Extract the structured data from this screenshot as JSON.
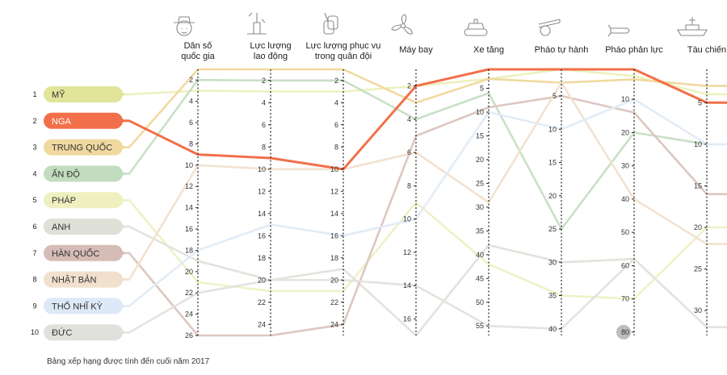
{
  "chart_data": {
    "type": "parallel-coordinates",
    "title": "",
    "footnote": "Bảng xếp hạng được tính đến cuối năm 2017",
    "axes": [
      {
        "key": "dan_so",
        "label_lines": [
          "Dân số",
          "quốc gia"
        ],
        "icon": "person-icon",
        "min": 1,
        "max": 26,
        "ticks": [
          2,
          4,
          6,
          8,
          10,
          12,
          14,
          16,
          18,
          20,
          22,
          24,
          26
        ]
      },
      {
        "key": "luc_luong_lao_dong",
        "label_lines": [
          "Lực lượng",
          "lao động"
        ],
        "icon": "worker-icon",
        "min": 1,
        "max": 25,
        "ticks": [
          2,
          4,
          6,
          8,
          10,
          12,
          14,
          16,
          18,
          20,
          22,
          24
        ]
      },
      {
        "key": "luc_luong_phuc_vu",
        "label_lines": [
          "Lực lượng phục vụ",
          "trong quân đội"
        ],
        "icon": "dog-tags-icon",
        "min": 1,
        "max": 25,
        "ticks": [
          2,
          4,
          6,
          8,
          10,
          12,
          14,
          16,
          18,
          20,
          22,
          24
        ]
      },
      {
        "key": "may_bay",
        "label_lines": [
          "Máy bay"
        ],
        "icon": "propeller-icon",
        "min": 1,
        "max": 17,
        "ticks": [
          2,
          4,
          6,
          8,
          10,
          12,
          14,
          16
        ]
      },
      {
        "key": "xe_tang",
        "label_lines": [
          "Xe tăng"
        ],
        "icon": "tank-icon",
        "min": 1,
        "max": 57,
        "ticks": [
          5,
          10,
          15,
          20,
          25,
          30,
          35,
          40,
          45,
          50,
          55
        ]
      },
      {
        "key": "phao_tu_hanh",
        "label_lines": [
          "Pháo tự hành"
        ],
        "icon": "cannon-icon",
        "min": 1,
        "max": 41,
        "ticks": [
          5,
          10,
          15,
          20,
          25,
          30,
          35,
          40
        ]
      },
      {
        "key": "phao_phan_luc",
        "label_lines": [
          "Pháo phản lực"
        ],
        "icon": "rocket-icon",
        "min": 1,
        "max": 81,
        "ticks": [
          10,
          20,
          30,
          40,
          50,
          60,
          70,
          80
        ],
        "highlight_tick": 80
      },
      {
        "key": "tau_chien",
        "label_lines": [
          "Tàu chiến"
        ],
        "icon": "warship-icon",
        "min": 1,
        "max": 33,
        "ticks": [
          5,
          10,
          15,
          20,
          25,
          30
        ]
      }
    ],
    "series": [
      {
        "name": "MỸ",
        "rank": 1,
        "color": "#e0e59a",
        "line_color": "#eef0bf",
        "values": [
          3,
          3,
          3,
          2,
          3,
          1,
          3,
          4
        ]
      },
      {
        "name": "NGA",
        "rank": 2,
        "color": "#f1704a",
        "line_color": "#f1704a",
        "highlight": true,
        "values": [
          9,
          9,
          10,
          2,
          1,
          1,
          1,
          5
        ]
      },
      {
        "name": "TRUNG QUỐC",
        "rank": 3,
        "color": "#f0d9a0",
        "line_color": "#f1d99f",
        "values": [
          1,
          1,
          1,
          3,
          3,
          3,
          4,
          3
        ]
      },
      {
        "name": "ẤN ĐỘ",
        "rank": 4,
        "color": "#c2dcbf",
        "line_color": "#c9e0c6",
        "values": [
          2,
          2,
          2,
          4,
          6,
          25,
          20,
          10
        ]
      },
      {
        "name": "PHÁP",
        "rank": 5,
        "color": "#eef0bf",
        "line_color": "#eef2c6",
        "values": [
          21,
          21,
          21,
          9,
          42,
          35,
          70,
          20
        ]
      },
      {
        "name": "ANH",
        "rank": 6,
        "color": "#dfe0d8",
        "line_color": "#e2e3dc",
        "values": [
          19,
          20,
          19,
          17,
          38,
          30,
          58,
          32
        ]
      },
      {
        "name": "HÀN QUỐC",
        "rank": 7,
        "color": "#d6bcb6",
        "line_color": "#ddc7c1",
        "values": [
          26,
          25,
          24,
          5,
          9,
          5,
          14,
          16
        ]
      },
      {
        "name": "NHẬT BẢN",
        "rank": 8,
        "color": "#f1e0cd",
        "line_color": "#f2e2d0",
        "values": [
          10,
          10,
          10,
          6,
          29,
          3,
          40,
          22
        ]
      },
      {
        "name": "THỔ NHĨ KỲ",
        "rank": 9,
        "color": "#dde9f6",
        "line_color": "#e2ecf7",
        "values": [
          18,
          15,
          16,
          10,
          10,
          10,
          10,
          10
        ]
      },
      {
        "name": "ĐỨC",
        "rank": 10,
        "color": "#e0e0dc",
        "line_color": "#e3e3df",
        "values": [
          22,
          20,
          20,
          14,
          55,
          40,
          58,
          32
        ]
      }
    ]
  }
}
